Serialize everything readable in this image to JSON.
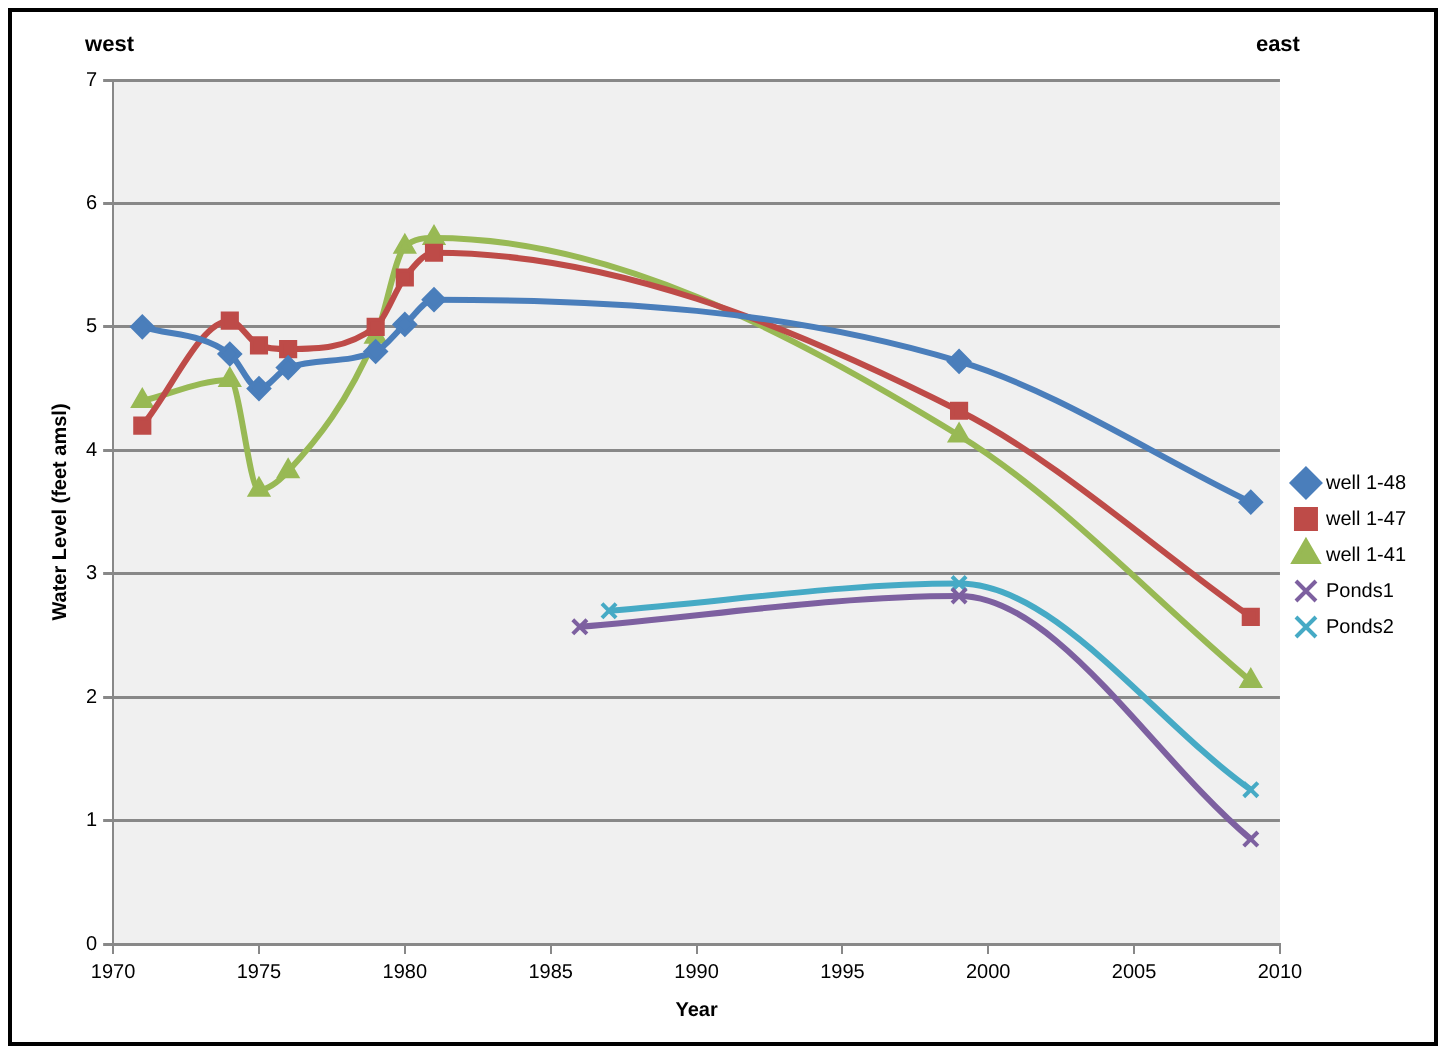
{
  "chart_data": {
    "type": "line",
    "xlabel": "Year",
    "ylabel": "Water Level (feet amsl)",
    "annotations": [
      "west",
      "east"
    ],
    "xlim": [
      1970,
      2010
    ],
    "xticks": [
      1970,
      1975,
      1980,
      1985,
      1990,
      1995,
      2000,
      2005,
      2010
    ],
    "ylim": [
      0,
      7
    ],
    "yticks": [
      0,
      1,
      2,
      3,
      4,
      5,
      6,
      7
    ],
    "grid": "y",
    "legend": "right",
    "line_style": "solid",
    "series": [
      {
        "name": "well 1-48",
        "color": "#4a7ebb",
        "marker": "diamond",
        "x": [
          1971,
          1974,
          1975,
          1976,
          1979,
          1980,
          1981,
          1999,
          2009
        ],
        "values": [
          5.0,
          4.78,
          4.5,
          4.67,
          4.8,
          5.02,
          5.22,
          4.72,
          3.58
        ]
      },
      {
        "name": "well 1-47",
        "color": "#be4b48",
        "marker": "square",
        "x": [
          1971,
          1974,
          1975,
          1976,
          1979,
          1980,
          1981,
          1999,
          2009
        ],
        "values": [
          4.2,
          5.05,
          4.85,
          4.82,
          5.0,
          5.4,
          5.6,
          4.32,
          2.65
        ]
      },
      {
        "name": "well 1-41",
        "color": "#98b954",
        "marker": "triangle",
        "x": [
          1971,
          1974,
          1975,
          1976,
          1979,
          1980,
          1981,
          1999,
          2009
        ],
        "values": [
          4.4,
          4.57,
          3.68,
          3.83,
          4.92,
          5.65,
          5.72,
          4.12,
          2.13
        ]
      },
      {
        "name": "Ponds1",
        "color": "#7d60a0",
        "marker": "cross",
        "x": [
          1986,
          1999,
          2009
        ],
        "values": [
          2.57,
          2.82,
          0.85
        ]
      },
      {
        "name": "Ponds2",
        "color": "#46aac5",
        "marker": "cross",
        "x": [
          1987,
          1999,
          2009
        ],
        "values": [
          2.7,
          2.92,
          1.25
        ]
      }
    ]
  }
}
